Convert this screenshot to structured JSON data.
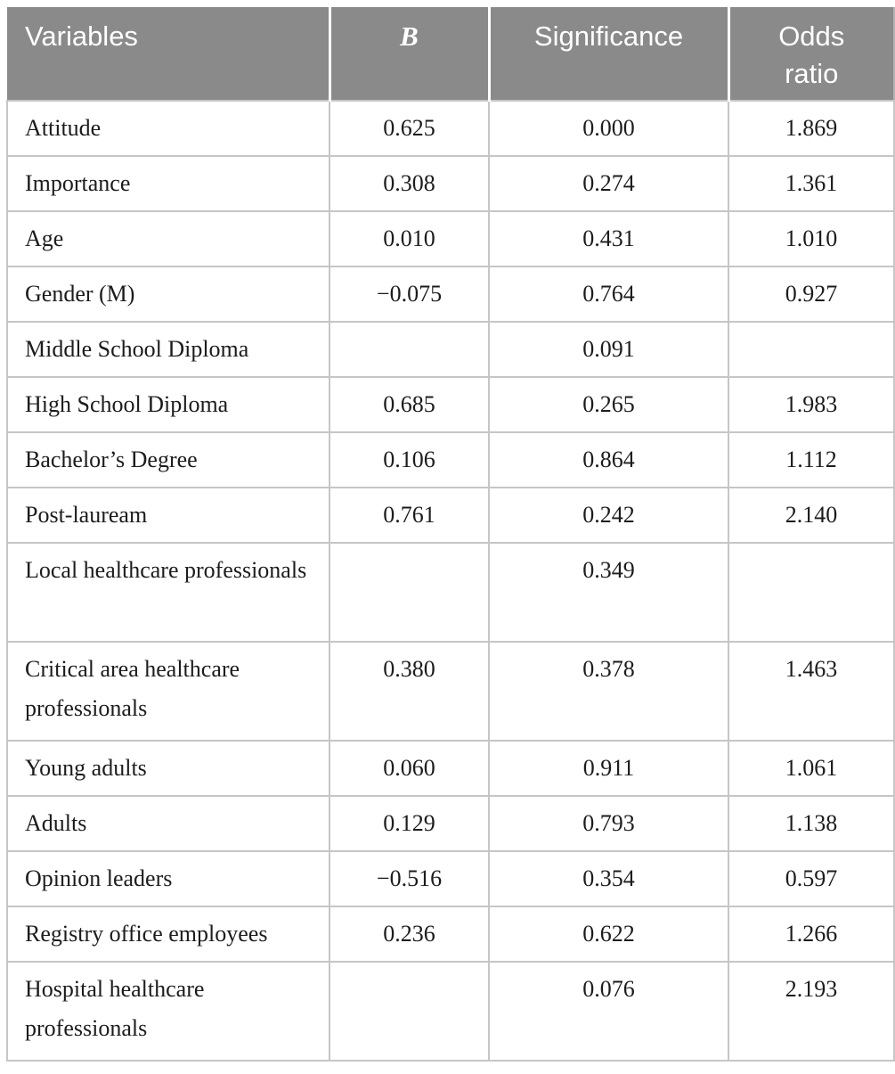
{
  "table": {
    "header": {
      "variables": "Variables",
      "b": "B",
      "significance": "Significance",
      "odds_ratio": "Odds ratio"
    },
    "rows": [
      {
        "variable": "Attitude",
        "b": "0.625",
        "significance": "0.000",
        "odds": "1.869"
      },
      {
        "variable": "Importance",
        "b": "0.308",
        "significance": "0.274",
        "odds": "1.361"
      },
      {
        "variable": "Age",
        "b": "0.010",
        "significance": "0.431",
        "odds": "1.010"
      },
      {
        "variable": "Gender (M)",
        "b": "−0.075",
        "significance": "0.764",
        "odds": "0.927"
      },
      {
        "variable": "Middle School Diploma",
        "b": "",
        "significance": "0.091",
        "odds": ""
      },
      {
        "variable": "High School Diploma",
        "b": "0.685",
        "significance": "0.265",
        "odds": "1.983"
      },
      {
        "variable": "Bachelor’s Degree",
        "b": "0.106",
        "significance": "0.864",
        "odds": "1.112"
      },
      {
        "variable": "Post-lauream",
        "b": "0.761",
        "significance": "0.242",
        "odds": "2.140"
      },
      {
        "variable": "Local healthcare professionals",
        "b": "",
        "significance": "0.349",
        "odds": ""
      },
      {
        "variable": "Critical area healthcare professionals",
        "b": "0.380",
        "significance": "0.378",
        "odds": "1.463"
      },
      {
        "variable": "Young adults",
        "b": "0.060",
        "significance": "0.911",
        "odds": "1.061"
      },
      {
        "variable": "Adults",
        "b": "0.129",
        "significance": "0.793",
        "odds": "1.138"
      },
      {
        "variable": "Opinion leaders",
        "b": "−0.516",
        "significance": "0.354",
        "odds": "0.597"
      },
      {
        "variable": "Registry office employees",
        "b": "0.236",
        "significance": "0.622",
        "odds": "1.266"
      },
      {
        "variable": "Hospital healthcare professionals",
        "b": "",
        "significance": "0.076",
        "odds": "2.193"
      }
    ]
  },
  "colors": {
    "header_bg": "#8a8a8a",
    "header_text": "#ffffff",
    "grid_line": "#c6c6c6",
    "body_text": "#1c1c1c"
  }
}
